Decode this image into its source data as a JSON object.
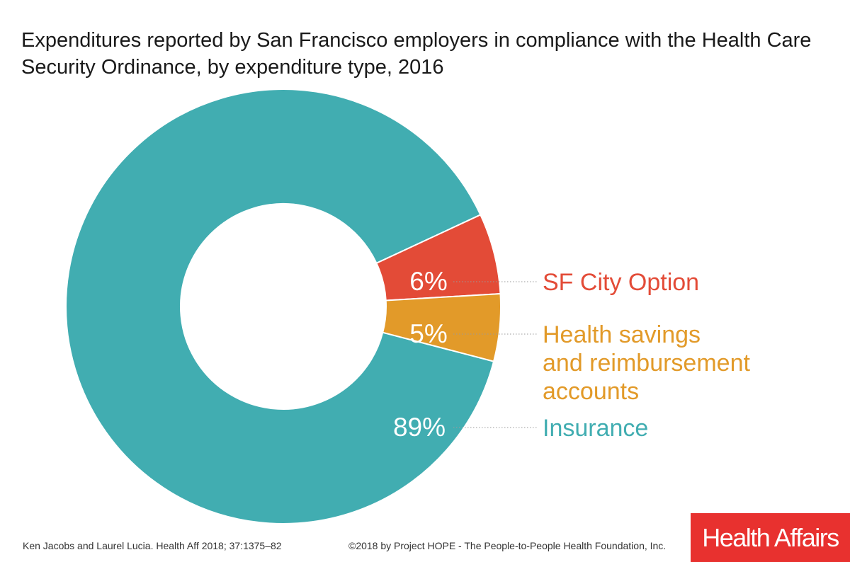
{
  "chart_data": {
    "type": "pie",
    "subtype": "donut",
    "title": "Expenditures reported by San Francisco employers in compliance with the Health Care Security Ordinance, by expenditure type, 2016",
    "slices": [
      {
        "label_lines": [
          "Insurance"
        ],
        "value": 89,
        "value_label": "89%",
        "color": "#41adb1"
      },
      {
        "label_lines": [
          "SF City Option"
        ],
        "value": 6,
        "value_label": "6%",
        "color": "#e34b37"
      },
      {
        "label_lines": [
          "Health savings",
          "and reimbursement",
          "accounts"
        ],
        "value": 5,
        "value_label": "5%",
        "color": "#e29a29"
      }
    ]
  },
  "footer": {
    "citation": "Ken Jacobs and Laurel Lucia. Health Aff 2018; 37:1375–82",
    "copyright": "©2018 by Project HOPE - The People-to-People Health Foundation, Inc."
  },
  "logo": {
    "text": "Health Affairs",
    "color": "#e8312f"
  }
}
